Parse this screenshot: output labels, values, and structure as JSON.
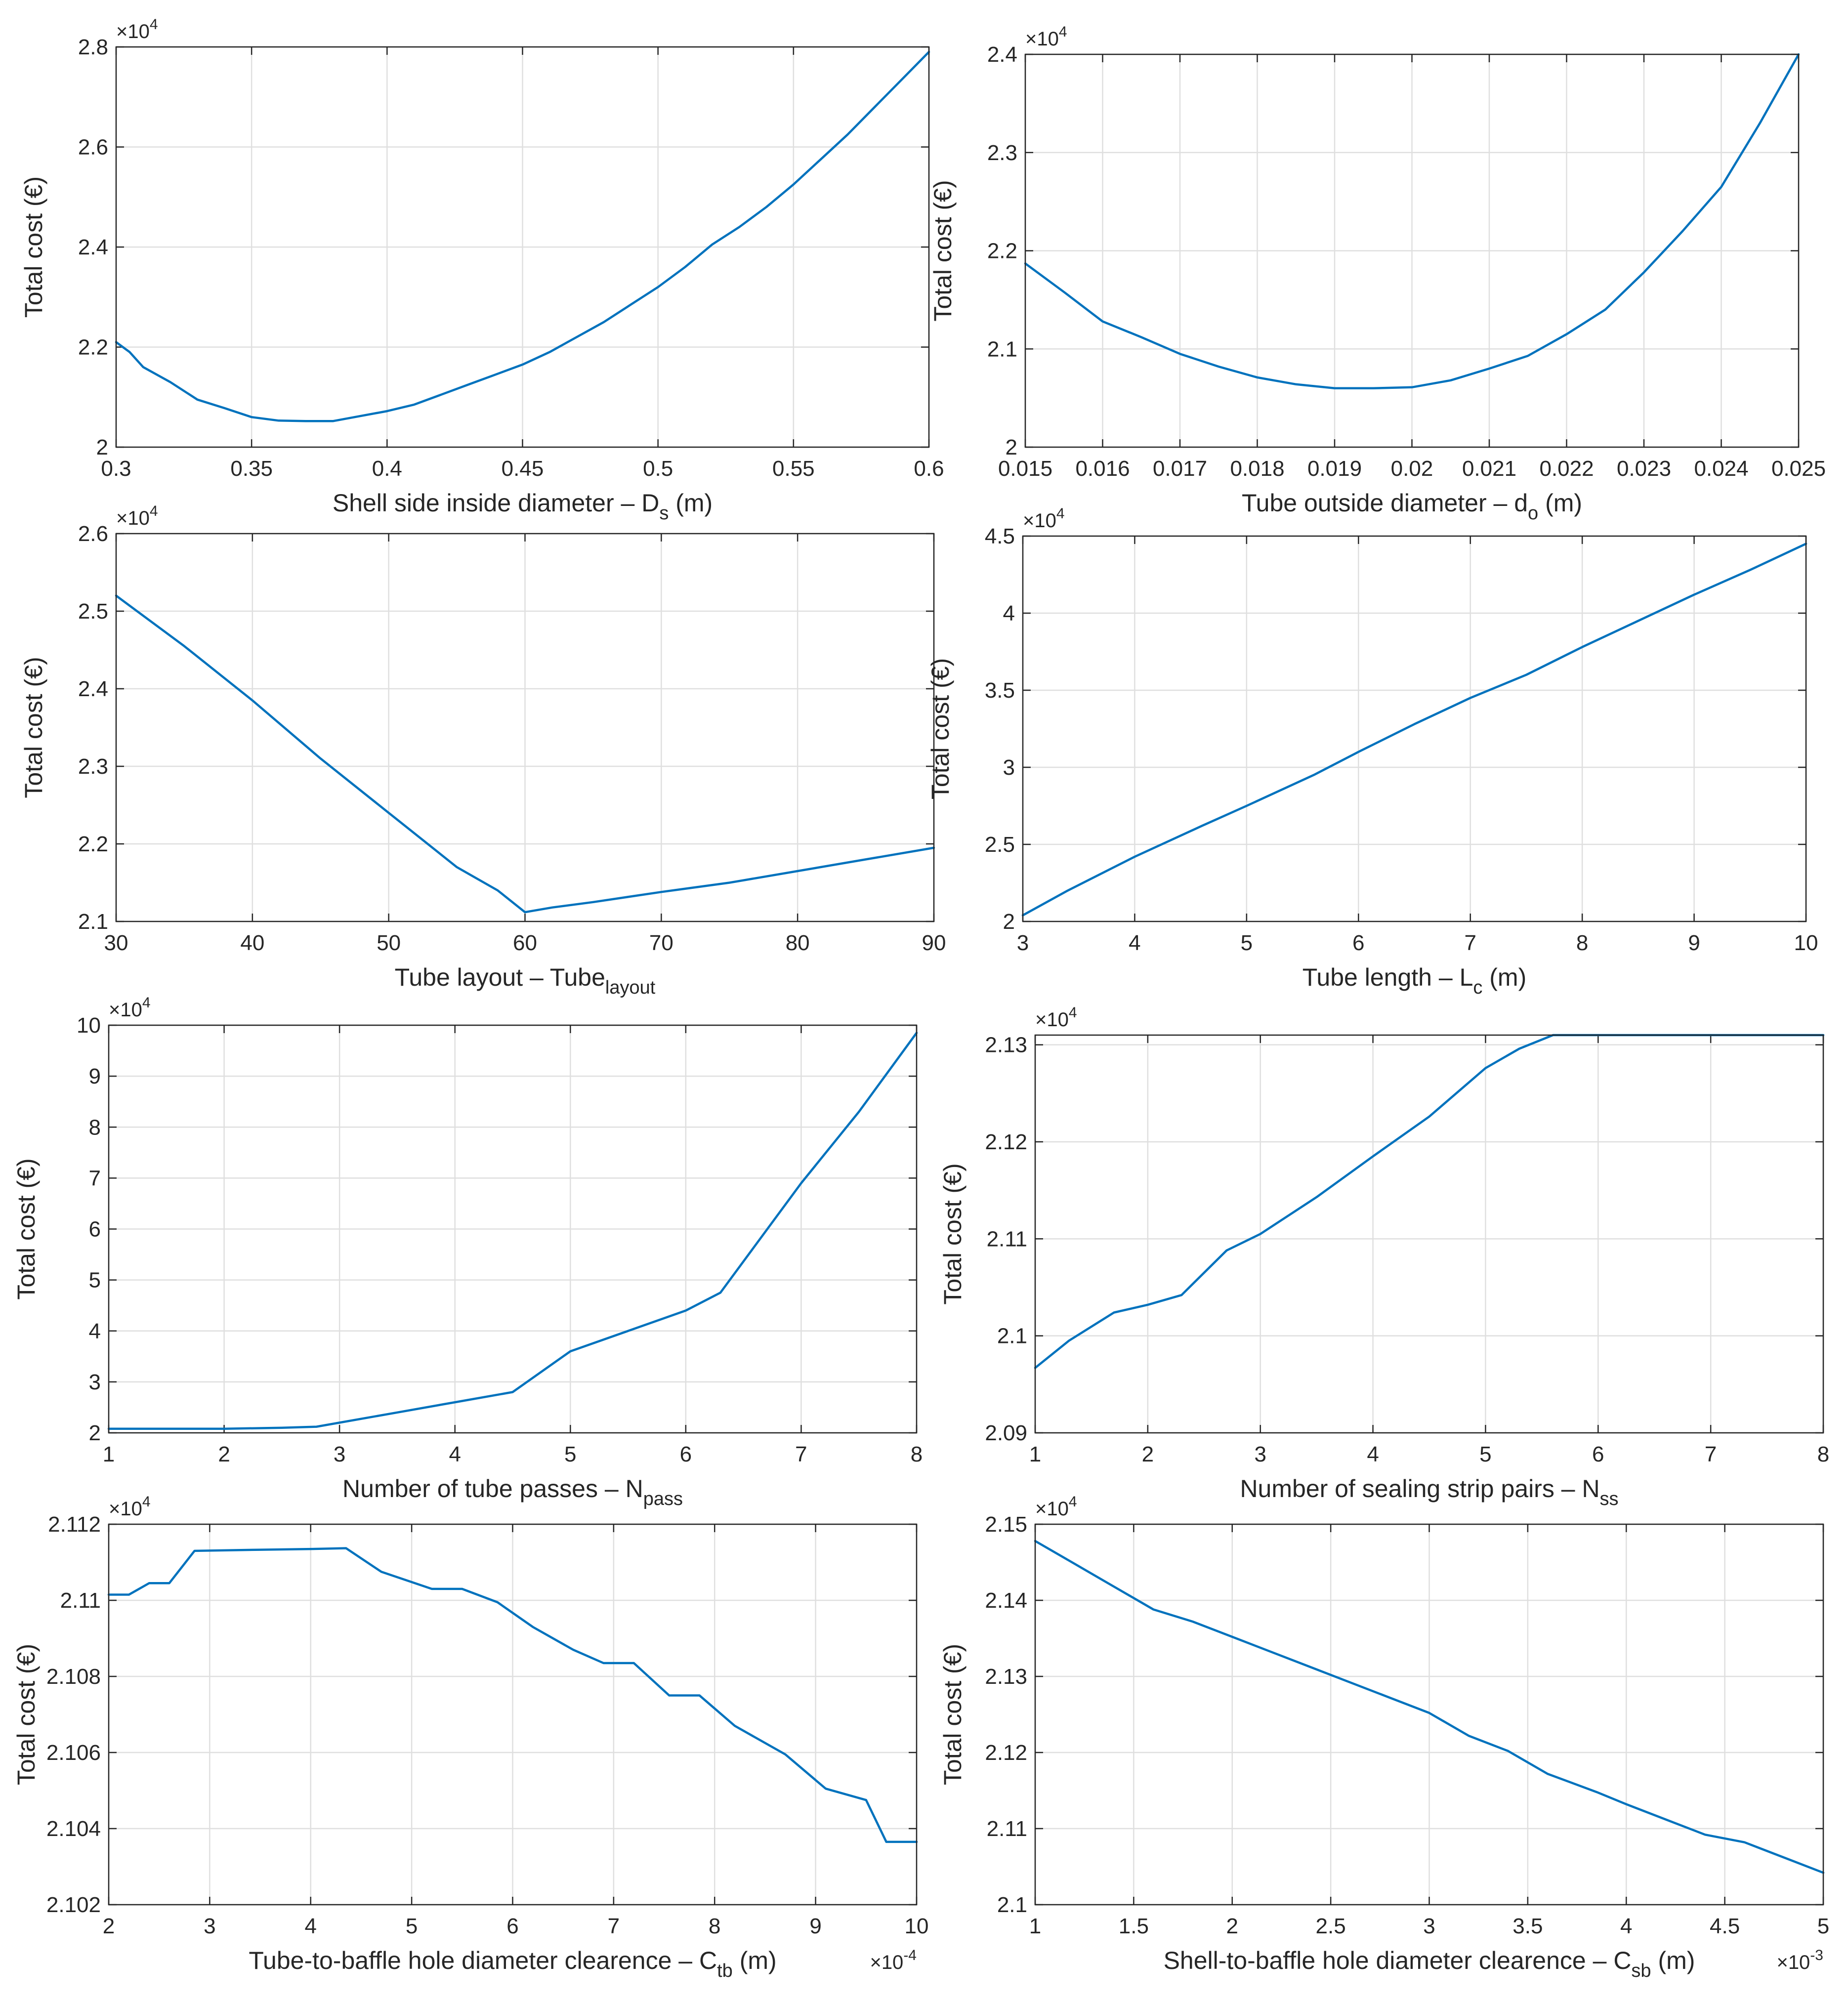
{
  "chart_data": [
    {
      "type": "line",
      "xlabel": "Shell side inside diameter",
      "xsymbol": "D",
      "xsub": "s",
      "xunit": "(m)",
      "ylabel": "Total cost (€)",
      "yexp": "4",
      "xlim": [
        0.3,
        0.6
      ],
      "ylim": [
        2.0,
        2.8
      ],
      "xticks": [
        0.3,
        0.35,
        0.4,
        0.45,
        0.5,
        0.55,
        0.6
      ],
      "xticklabels": [
        "0.3",
        "0.35",
        "0.4",
        "0.45",
        "0.5",
        "0.55",
        "0.6"
      ],
      "yticks": [
        2.0,
        2.2,
        2.4,
        2.6,
        2.8
      ],
      "yticklabels": [
        "2",
        "2.2",
        "2.4",
        "2.6",
        "2.8"
      ],
      "grid": true,
      "series": [
        {
          "color": "#0072BD",
          "x": [
            0.3,
            0.305,
            0.31,
            0.32,
            0.33,
            0.34,
            0.35,
            0.36,
            0.37,
            0.38,
            0.39,
            0.4,
            0.41,
            0.42,
            0.43,
            0.44,
            0.45,
            0.46,
            0.47,
            0.48,
            0.49,
            0.5,
            0.51,
            0.52,
            0.53,
            0.54,
            0.55,
            0.56,
            0.57,
            0.58,
            0.59,
            0.6
          ],
          "y": [
            2.21,
            2.19,
            2.16,
            2.13,
            2.095,
            2.078,
            2.06,
            2.053,
            2.052,
            2.052,
            2.062,
            2.072,
            2.085,
            2.105,
            2.125,
            2.145,
            2.165,
            2.19,
            2.22,
            2.25,
            2.285,
            2.32,
            2.36,
            2.405,
            2.44,
            2.48,
            2.525,
            2.575,
            2.625,
            2.68,
            2.735,
            2.79
          ]
        }
      ]
    },
    {
      "type": "line",
      "xlabel": "Tube outside diameter",
      "xsymbol": "d",
      "xsub": "o",
      "xunit": "(m)",
      "ylabel": "Total cost (€)",
      "yexp": "4",
      "xlim": [
        0.015,
        0.025
      ],
      "ylim": [
        2.0,
        2.4
      ],
      "xticks": [
        0.015,
        0.016,
        0.017,
        0.018,
        0.019,
        0.02,
        0.021,
        0.022,
        0.023,
        0.024,
        0.025
      ],
      "xticklabels": [
        "0.015",
        "0.016",
        "0.017",
        "0.018",
        "0.019",
        "0.02",
        "0.021",
        "0.022",
        "0.023",
        "0.024",
        "0.025"
      ],
      "yticks": [
        2.0,
        2.1,
        2.2,
        2.3,
        2.4
      ],
      "yticklabels": [
        "2",
        "2.1",
        "2.2",
        "2.3",
        "2.4"
      ],
      "grid": true,
      "series": [
        {
          "color": "#0072BD",
          "x": [
            0.015,
            0.0155,
            0.016,
            0.0165,
            0.017,
            0.0175,
            0.018,
            0.0185,
            0.019,
            0.0195,
            0.02,
            0.0205,
            0.021,
            0.0215,
            0.022,
            0.0225,
            0.023,
            0.0235,
            0.024,
            0.0245,
            0.025
          ],
          "y": [
            2.187,
            2.158,
            2.128,
            2.112,
            2.095,
            2.082,
            2.071,
            2.064,
            2.06,
            2.06,
            2.061,
            2.068,
            2.08,
            2.093,
            2.115,
            2.14,
            2.178,
            2.22,
            2.265,
            2.33,
            2.4
          ]
        }
      ]
    },
    {
      "type": "line",
      "xlabel": "Tube layout",
      "xsymbol": "Tube",
      "xsub": "layout",
      "xunit": "",
      "ylabel": "Total cost (€)",
      "yexp": "4",
      "xlim": [
        30,
        90
      ],
      "ylim": [
        2.1,
        2.6
      ],
      "xticks": [
        30,
        40,
        50,
        60,
        70,
        80,
        90
      ],
      "xticklabels": [
        "30",
        "40",
        "50",
        "60",
        "70",
        "80",
        "90"
      ],
      "yticks": [
        2.1,
        2.2,
        2.3,
        2.4,
        2.5,
        2.6
      ],
      "yticklabels": [
        "2.1",
        "2.2",
        "2.3",
        "2.4",
        "2.5",
        "2.6"
      ],
      "grid": true,
      "series": [
        {
          "color": "#0072BD",
          "x": [
            30,
            35,
            40,
            45,
            50,
            55,
            58,
            60,
            62,
            65,
            70,
            75,
            80,
            85,
            90
          ],
          "y": [
            2.52,
            2.455,
            2.385,
            2.31,
            2.24,
            2.17,
            2.14,
            2.112,
            2.118,
            2.125,
            2.138,
            2.15,
            2.165,
            2.18,
            2.195
          ]
        }
      ]
    },
    {
      "type": "line",
      "xlabel": "Tube length",
      "xsymbol": "L",
      "xsub": "c",
      "xunit": "(m)",
      "ylabel": "Total cost (€)",
      "yexp": "4",
      "xlim": [
        3,
        10
      ],
      "ylim": [
        2.0,
        4.5
      ],
      "xticks": [
        3,
        4,
        5,
        6,
        7,
        8,
        9,
        10
      ],
      "xticklabels": [
        "3",
        "4",
        "5",
        "6",
        "7",
        "8",
        "9",
        "10"
      ],
      "yticks": [
        2.0,
        2.5,
        3.0,
        3.5,
        4.0,
        4.5
      ],
      "yticklabels": [
        "2",
        "2.5",
        "3",
        "3.5",
        "4",
        "4.5"
      ],
      "grid": true,
      "series": [
        {
          "color": "#0072BD",
          "x": [
            3,
            3.4,
            4,
            4.6,
            5,
            5.6,
            6,
            6.5,
            7,
            7.5,
            8,
            8.5,
            9,
            9.5,
            10
          ],
          "y": [
            2.04,
            2.2,
            2.42,
            2.62,
            2.75,
            2.95,
            3.1,
            3.28,
            3.45,
            3.6,
            3.78,
            3.95,
            4.12,
            4.28,
            4.45
          ]
        }
      ]
    },
    {
      "type": "line",
      "xlabel": "Number of tube passes",
      "xsymbol": "N",
      "xsub": "pass",
      "xunit": "",
      "ylabel": "Total cost (€)",
      "yexp": "4",
      "xlim": [
        1,
        8
      ],
      "ylim": [
        2,
        10
      ],
      "xticks": [
        1,
        2,
        3,
        4,
        5,
        6,
        7,
        8
      ],
      "xticklabels": [
        "1",
        "2",
        "3",
        "4",
        "5",
        "6",
        "7",
        "8"
      ],
      "yticks": [
        2,
        3,
        4,
        5,
        6,
        7,
        8,
        9,
        10
      ],
      "yticklabels": [
        "2",
        "3",
        "4",
        "5",
        "6",
        "7",
        "8",
        "9",
        "10"
      ],
      "grid": true,
      "series": [
        {
          "color": "#0072BD",
          "x": [
            1,
            1.5,
            2,
            2.5,
            2.8,
            3,
            3.5,
            4,
            4.5,
            5,
            5.5,
            6,
            6.3,
            7,
            7.5,
            8
          ],
          "y": [
            2.08,
            2.08,
            2.08,
            2.1,
            2.12,
            2.2,
            2.4,
            2.6,
            2.8,
            3.6,
            4.0,
            4.4,
            4.75,
            6.9,
            8.3,
            9.85
          ]
        }
      ]
    },
    {
      "type": "line",
      "xlabel": "Number of sealing strip pairs",
      "xsymbol": "N",
      "xsub": "ss",
      "xunit": "",
      "ylabel": "Total cost (€)",
      "yexp": "4",
      "xlim": [
        1,
        8
      ],
      "ylim": [
        2.09,
        2.131
      ],
      "xticks": [
        1,
        2,
        3,
        4,
        5,
        6,
        7,
        8
      ],
      "xticklabels": [
        "1",
        "2",
        "3",
        "4",
        "5",
        "6",
        "7",
        "8"
      ],
      "yticks": [
        2.09,
        2.1,
        2.11,
        2.12,
        2.13
      ],
      "yticklabels": [
        "2.09",
        "2.1",
        "2.11",
        "2.12",
        "2.13"
      ],
      "grid": true,
      "series": [
        {
          "color": "#0072BD",
          "x": [
            1,
            1.3,
            1.7,
            2,
            2.3,
            2.5,
            2.7,
            3,
            3.5,
            4,
            4.5,
            5,
            5.3,
            5.6,
            6,
            7,
            8
          ],
          "y": [
            2.0967,
            2.0995,
            2.1024,
            2.1032,
            2.1042,
            2.1065,
            2.1088,
            2.1105,
            2.1143,
            2.1185,
            2.1226,
            2.1276,
            2.1296,
            2.131,
            2.131,
            2.131,
            2.131
          ]
        }
      ]
    },
    {
      "type": "line",
      "xlabel": "Tube-to-baffle hole diameter clearence",
      "xsymbol": "C",
      "xsub": "tb",
      "xunit": "(m)",
      "ylabel": "Total cost (€)",
      "yexp": "4",
      "xexp": "-4",
      "xlim": [
        2,
        10
      ],
      "ylim": [
        2.102,
        2.112
      ],
      "xticks": [
        2,
        3,
        4,
        5,
        6,
        7,
        8,
        9,
        10
      ],
      "xticklabels": [
        "2",
        "3",
        "4",
        "5",
        "6",
        "7",
        "8",
        "9",
        "10"
      ],
      "yticks": [
        2.102,
        2.104,
        2.106,
        2.108,
        2.11,
        2.112
      ],
      "yticklabels": [
        "2.102",
        "2.104",
        "2.106",
        "2.108",
        "2.11",
        "2.112"
      ],
      "grid": true,
      "series": [
        {
          "color": "#0072BD",
          "x": [
            2,
            2.2,
            2.4,
            2.6,
            2.85,
            3.5,
            4,
            4.35,
            4.7,
            5.2,
            5.5,
            5.85,
            6.2,
            6.6,
            6.9,
            7.2,
            7.55,
            7.85,
            8.2,
            8.7,
            9.1,
            9.5,
            9.7,
            10
          ],
          "y": [
            2.11015,
            2.11015,
            2.11045,
            2.11045,
            2.1113,
            2.11133,
            2.11135,
            2.11137,
            2.11075,
            2.1103,
            2.1103,
            2.10995,
            2.1093,
            2.1087,
            2.10835,
            2.10835,
            2.1075,
            2.1075,
            2.1067,
            2.10595,
            2.10505,
            2.10475,
            2.10365,
            2.10365
          ]
        }
      ]
    },
    {
      "type": "line",
      "xlabel": "Shell-to-baffle hole diameter clearence",
      "xsymbol": "C",
      "xsub": "sb",
      "xunit": "(m)",
      "ylabel": "Total cost (€)",
      "yexp": "4",
      "xexp": "-3",
      "xlim": [
        1,
        5
      ],
      "ylim": [
        2.1,
        2.15
      ],
      "xticks": [
        1,
        1.5,
        2,
        2.5,
        3,
        3.5,
        4,
        4.5,
        5
      ],
      "xticklabels": [
        "1",
        "1.5",
        "2",
        "2.5",
        "3",
        "3.5",
        "4",
        "4.5",
        "5"
      ],
      "yticks": [
        2.1,
        2.11,
        2.12,
        2.13,
        2.14,
        2.15
      ],
      "yticklabels": [
        "2.1",
        "2.11",
        "2.12",
        "2.13",
        "2.14",
        "2.15"
      ],
      "grid": true,
      "series": [
        {
          "color": "#0072BD",
          "x": [
            1,
            1.2,
            1.4,
            1.6,
            1.8,
            2,
            2.2,
            2.4,
            2.6,
            2.8,
            3,
            3.2,
            3.4,
            3.6,
            3.85,
            4,
            4.2,
            4.4,
            4.6,
            4.8,
            5
          ],
          "y": [
            2.1478,
            2.1448,
            2.1418,
            2.1388,
            2.1372,
            2.1352,
            2.1332,
            2.1312,
            2.1292,
            2.1272,
            2.1252,
            2.1222,
            2.1202,
            2.1172,
            2.1148,
            2.1132,
            2.1112,
            2.1092,
            2.1082,
            2.1062,
            2.1042
          ]
        }
      ]
    }
  ]
}
